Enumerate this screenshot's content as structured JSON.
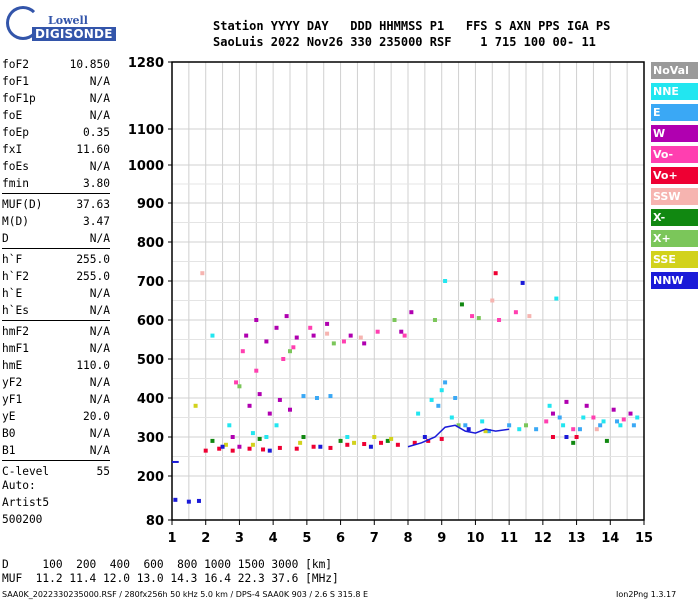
{
  "logo": {
    "brand_top": "Lowell",
    "brand_bottom": "DIGISONDE"
  },
  "header": {
    "line1": "Station YYYY DAY   DDD HHMMSS P1   FFS S AXN PPS IGA PS",
    "line2": "SaoLuis 2022 Nov26 330 235000 RSF    1 715 100 00- 11"
  },
  "params": [
    [
      {
        "k": "foF2",
        "v": "10.850"
      },
      {
        "k": "foF1",
        "v": "N/A"
      },
      {
        "k": "foF1p",
        "v": "N/A"
      },
      {
        "k": "foE",
        "v": "N/A"
      },
      {
        "k": "foEp",
        "v": "0.35"
      },
      {
        "k": "fxI",
        "v": "11.60"
      },
      {
        "k": "foEs",
        "v": "N/A"
      },
      {
        "k": "fmin",
        "v": "3.80"
      }
    ],
    [
      {
        "k": "MUF(D)",
        "v": "37.63"
      },
      {
        "k": "M(D)",
        "v": "3.47"
      },
      {
        "k": "D",
        "v": "N/A"
      }
    ],
    [
      {
        "k": "h`F",
        "v": "255.0"
      },
      {
        "k": "h`F2",
        "v": "255.0"
      },
      {
        "k": "h`E",
        "v": "N/A"
      },
      {
        "k": "h`Es",
        "v": "N/A"
      }
    ],
    [
      {
        "k": "hmF2",
        "v": "N/A"
      },
      {
        "k": "hmF1",
        "v": "N/A"
      },
      {
        "k": "hmE",
        "v": "110.0"
      },
      {
        "k": "yF2",
        "v": "N/A"
      },
      {
        "k": "yF1",
        "v": "N/A"
      },
      {
        "k": "yE",
        "v": "20.0"
      },
      {
        "k": "B0",
        "v": "N/A"
      },
      {
        "k": "B1",
        "v": "N/A"
      }
    ],
    [
      {
        "k": "C-level",
        "v": "55"
      }
    ]
  ],
  "auto": {
    "line1": "Auto:",
    "line2": "Artist5",
    "line3": "500200"
  },
  "legend": [
    {
      "label": "NoVal",
      "color": "#9a9a9a"
    },
    {
      "label": "NNE",
      "color": "#22e6f0"
    },
    {
      "label": "E",
      "color": "#3aa8f5"
    },
    {
      "label": "W",
      "color": "#b000b0"
    },
    {
      "label": "Vo-",
      "color": "#ff3fb0"
    },
    {
      "label": "Vo+",
      "color": "#ee0033"
    },
    {
      "label": "SSW",
      "color": "#f6b4b0"
    },
    {
      "label": "X-",
      "color": "#118811"
    },
    {
      "label": "X+",
      "color": "#7bc65a"
    },
    {
      "label": "SSE",
      "color": "#d2d21c"
    },
    {
      "label": "NNW",
      "color": "#1a1ad8"
    }
  ],
  "footer": {
    "d_line": "D     100  200  400  600  800 1000 1500 3000 [km]",
    "muf_line": "MUF  11.2 11.4 12.0 13.0 14.3 16.4 22.3 37.6 [MHz]",
    "file_line": "SAA0K_2022330235000.RSF / 280fx256h 50 kHz 5.0 km / DPS-4 SAA0K 903 / 2.6 S 315.8 E",
    "version": "Ion2Png 1.3.17"
  },
  "chart_data": {
    "type": "scatter",
    "xlim": [
      1,
      15
    ],
    "ylim": [
      80,
      1280
    ],
    "x_ticks": [
      1,
      2,
      3,
      4,
      5,
      6,
      7,
      8,
      9,
      10,
      11,
      12,
      13,
      14,
      15
    ],
    "y_ticks": [
      80,
      200,
      300,
      400,
      500,
      600,
      700,
      800,
      900,
      1000,
      1100,
      1280
    ],
    "grid": true,
    "y_scale": "virtual-height",
    "series": [
      {
        "name": "NoVal",
        "points": []
      },
      {
        "name": "NNE",
        "points": [
          [
            3.4,
            310
          ],
          [
            4.1,
            330
          ],
          [
            6.2,
            300
          ],
          [
            8.3,
            360
          ],
          [
            8.7,
            395
          ],
          [
            9.0,
            420
          ],
          [
            9.3,
            350
          ],
          [
            10.2,
            340
          ],
          [
            11.3,
            320
          ],
          [
            12.2,
            380
          ],
          [
            12.6,
            330
          ],
          [
            13.2,
            350
          ],
          [
            13.8,
            340
          ],
          [
            14.3,
            330
          ],
          [
            14.8,
            350
          ],
          [
            9.1,
            700
          ],
          [
            12.4,
            655
          ],
          [
            2.2,
            560
          ],
          [
            2.7,
            330
          ],
          [
            3.8,
            300
          ]
        ]
      },
      {
        "name": "E",
        "points": [
          [
            8.9,
            380
          ],
          [
            9.1,
            440
          ],
          [
            9.4,
            400
          ],
          [
            9.7,
            330
          ],
          [
            10.4,
            315
          ],
          [
            11.0,
            330
          ],
          [
            11.8,
            320
          ],
          [
            12.5,
            350
          ],
          [
            13.1,
            320
          ],
          [
            13.7,
            330
          ],
          [
            14.2,
            340
          ],
          [
            14.7,
            330
          ],
          [
            4.9,
            405
          ],
          [
            5.3,
            400
          ],
          [
            5.7,
            405
          ]
        ]
      },
      {
        "name": "W",
        "points": [
          [
            3.2,
            560
          ],
          [
            3.5,
            600
          ],
          [
            3.8,
            545
          ],
          [
            4.1,
            580
          ],
          [
            4.4,
            610
          ],
          [
            4.7,
            555
          ],
          [
            3.3,
            380
          ],
          [
            3.6,
            410
          ],
          [
            3.9,
            360
          ],
          [
            4.2,
            395
          ],
          [
            4.5,
            370
          ],
          [
            2.8,
            300
          ],
          [
            3.0,
            275
          ],
          [
            5.2,
            560
          ],
          [
            5.6,
            590
          ],
          [
            6.3,
            560
          ],
          [
            6.7,
            540
          ],
          [
            7.8,
            570
          ],
          [
            8.1,
            620
          ],
          [
            12.3,
            360
          ],
          [
            12.7,
            390
          ],
          [
            13.3,
            380
          ],
          [
            14.1,
            370
          ],
          [
            14.6,
            360
          ]
        ]
      },
      {
        "name": "Vo-",
        "points": [
          [
            2.9,
            440
          ],
          [
            3.1,
            520
          ],
          [
            3.5,
            470
          ],
          [
            4.3,
            500
          ],
          [
            4.6,
            530
          ],
          [
            5.1,
            580
          ],
          [
            6.1,
            545
          ],
          [
            7.1,
            570
          ],
          [
            7.9,
            560
          ],
          [
            9.9,
            610
          ],
          [
            10.7,
            600
          ],
          [
            11.2,
            620
          ],
          [
            12.1,
            340
          ],
          [
            12.9,
            320
          ],
          [
            13.5,
            350
          ],
          [
            14.4,
            345
          ]
        ]
      },
      {
        "name": "Vo+",
        "points": [
          [
            2.0,
            265
          ],
          [
            2.4,
            270
          ],
          [
            2.8,
            265
          ],
          [
            3.3,
            270
          ],
          [
            3.7,
            268
          ],
          [
            4.2,
            272
          ],
          [
            4.7,
            270
          ],
          [
            5.2,
            275
          ],
          [
            5.7,
            272
          ],
          [
            6.2,
            280
          ],
          [
            6.7,
            282
          ],
          [
            7.2,
            285
          ],
          [
            7.7,
            280
          ],
          [
            8.2,
            285
          ],
          [
            8.6,
            290
          ],
          [
            9.0,
            295
          ],
          [
            10.6,
            720
          ],
          [
            12.3,
            300
          ],
          [
            13.0,
            300
          ]
        ]
      },
      {
        "name": "SSW",
        "points": [
          [
            1.9,
            720
          ],
          [
            10.5,
            650
          ],
          [
            11.6,
            610
          ],
          [
            5.6,
            565
          ],
          [
            6.6,
            555
          ],
          [
            13.6,
            320
          ]
        ]
      },
      {
        "name": "X-",
        "points": [
          [
            2.2,
            290
          ],
          [
            3.6,
            295
          ],
          [
            4.9,
            300
          ],
          [
            6.0,
            290
          ],
          [
            7.4,
            290
          ],
          [
            9.6,
            640
          ],
          [
            12.9,
            285
          ],
          [
            13.9,
            290
          ]
        ]
      },
      {
        "name": "X+",
        "points": [
          [
            3.0,
            430
          ],
          [
            4.5,
            520
          ],
          [
            5.8,
            540
          ],
          [
            7.6,
            600
          ],
          [
            8.8,
            600
          ],
          [
            10.1,
            605
          ],
          [
            9.5,
            330
          ],
          [
            11.5,
            330
          ]
        ]
      },
      {
        "name": "SSE",
        "points": [
          [
            1.7,
            380
          ],
          [
            2.6,
            280
          ],
          [
            3.4,
            280
          ],
          [
            4.8,
            285
          ],
          [
            6.4,
            285
          ],
          [
            7.5,
            295
          ],
          [
            7.0,
            300
          ],
          [
            10.3,
            315
          ]
        ]
      },
      {
        "name": "NNW",
        "points": [
          [
            1.1,
            135
          ],
          [
            1.5,
            130
          ],
          [
            1.8,
            132
          ],
          [
            2.5,
            275
          ],
          [
            3.9,
            265
          ],
          [
            5.4,
            275
          ],
          [
            6.9,
            275
          ],
          [
            8.5,
            300
          ],
          [
            9.8,
            320
          ],
          [
            11.4,
            695
          ],
          [
            12.7,
            300
          ]
        ]
      }
    ],
    "trace": [
      [
        8.0,
        275
      ],
      [
        8.4,
        285
      ],
      [
        8.8,
        300
      ],
      [
        9.1,
        325
      ],
      [
        9.4,
        330
      ],
      [
        9.7,
        315
      ],
      [
        10.0,
        310
      ],
      [
        10.3,
        320
      ],
      [
        10.6,
        315
      ],
      [
        11.0,
        320
      ]
    ],
    "trace_low": [
      [
        1.0,
        236
      ],
      [
        1.2,
        236
      ]
    ]
  }
}
